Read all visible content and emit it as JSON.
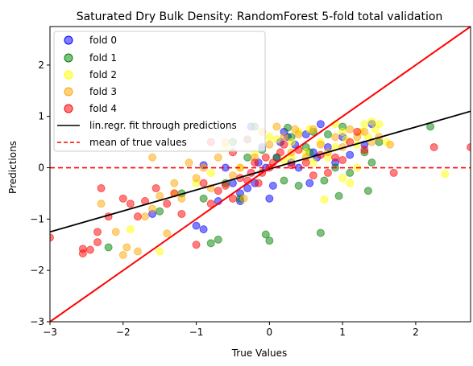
{
  "chart_data": {
    "type": "scatter",
    "title": "Saturated Dry Bulk Density: RandomForest 5-fold total validation",
    "xlabel": "True Values",
    "ylabel": "Predictions",
    "xlim": [
      -3.0,
      2.75
    ],
    "ylim": [
      -3.0,
      2.75
    ],
    "xticks": [
      -3,
      -2,
      -1,
      0,
      1,
      2
    ],
    "yticks": [
      -3,
      -2,
      -1,
      0,
      1,
      2
    ],
    "tick_labels": [
      "−3",
      "−2",
      "−1",
      "0",
      "1",
      "2"
    ],
    "legend_position": "upper-left",
    "series": [
      {
        "name": "fold 0",
        "color": "#0000ff",
        "points": [
          [
            -1.6,
            -0.9
          ],
          [
            -1.0,
            -1.13
          ],
          [
            -0.9,
            -1.2
          ],
          [
            -0.7,
            -0.65
          ],
          [
            -0.6,
            0.0
          ],
          [
            -0.5,
            -0.3
          ],
          [
            -0.4,
            -0.5
          ],
          [
            -0.3,
            0.55
          ],
          [
            -0.25,
            0.8
          ],
          [
            -0.2,
            -0.3
          ],
          [
            -0.15,
            0.1
          ],
          [
            -0.1,
            0.4
          ],
          [
            -0.05,
            0.0
          ],
          [
            0.0,
            -0.6
          ],
          [
            0.05,
            -0.35
          ],
          [
            0.1,
            0.2
          ],
          [
            0.15,
            0.5
          ],
          [
            0.2,
            0.7
          ],
          [
            0.3,
            0.1
          ],
          [
            0.35,
            0.45
          ],
          [
            0.4,
            0.0
          ],
          [
            0.5,
            0.65
          ],
          [
            0.55,
            -0.3
          ],
          [
            0.6,
            0.3
          ],
          [
            0.65,
            0.2
          ],
          [
            0.7,
            0.85
          ],
          [
            0.8,
            0.4
          ],
          [
            0.9,
            0.1
          ],
          [
            1.0,
            0.6
          ],
          [
            1.1,
            0.25
          ],
          [
            1.3,
            0.45
          ],
          [
            1.4,
            0.85
          ],
          [
            -0.3,
            -0.4
          ],
          [
            -0.4,
            -0.65
          ],
          [
            -0.9,
            0.05
          ],
          [
            0.25,
            0.6
          ]
        ]
      },
      {
        "name": "fold 1",
        "color": "#008000",
        "points": [
          [
            -2.2,
            -1.55
          ],
          [
            -1.5,
            -0.85
          ],
          [
            -1.2,
            -0.5
          ],
          [
            -0.9,
            -0.6
          ],
          [
            -0.8,
            -1.47
          ],
          [
            -0.7,
            -1.4
          ],
          [
            -0.6,
            -0.3
          ],
          [
            -0.5,
            0.5
          ],
          [
            -0.4,
            -0.6
          ],
          [
            -0.3,
            0.2
          ],
          [
            -0.2,
            0.8
          ],
          [
            -0.1,
            0.35
          ],
          [
            -0.05,
            -1.3
          ],
          [
            0.0,
            -1.42
          ],
          [
            0.1,
            0.2
          ],
          [
            0.2,
            -0.25
          ],
          [
            0.3,
            0.6
          ],
          [
            0.4,
            -0.35
          ],
          [
            0.5,
            0.4
          ],
          [
            0.6,
            0.7
          ],
          [
            0.7,
            -1.27
          ],
          [
            0.75,
            -0.25
          ],
          [
            0.8,
            0.65
          ],
          [
            0.9,
            0.0
          ],
          [
            0.95,
            -0.55
          ],
          [
            1.0,
            0.8
          ],
          [
            1.1,
            -0.1
          ],
          [
            1.3,
            0.3
          ],
          [
            1.35,
            -0.45
          ],
          [
            1.4,
            0.1
          ],
          [
            1.5,
            0.5
          ],
          [
            2.2,
            0.8
          ],
          [
            0.25,
            0.78
          ],
          [
            0.55,
            0.3
          ]
        ]
      },
      {
        "name": "fold 2",
        "color": "#ffff00",
        "points": [
          [
            -1.9,
            -1.2
          ],
          [
            -1.5,
            -1.63
          ],
          [
            -1.3,
            -0.5
          ],
          [
            -1.0,
            -0.3
          ],
          [
            -0.8,
            -0.1
          ],
          [
            -0.6,
            0.4
          ],
          [
            -0.4,
            0.0
          ],
          [
            -0.2,
            0.3
          ],
          [
            0.0,
            0.6
          ],
          [
            0.1,
            0.55
          ],
          [
            0.2,
            0.15
          ],
          [
            0.3,
            0.5
          ],
          [
            0.4,
            0.7
          ],
          [
            0.5,
            0.3
          ],
          [
            0.55,
            0.75
          ],
          [
            0.6,
            0.1
          ],
          [
            0.7,
            0.5
          ],
          [
            0.75,
            -0.62
          ],
          [
            0.8,
            0.2
          ],
          [
            0.9,
            0.4
          ],
          [
            1.0,
            0.7
          ],
          [
            1.05,
            0.55
          ],
          [
            1.1,
            -0.3
          ],
          [
            1.2,
            0.45
          ],
          [
            1.25,
            0.7
          ],
          [
            1.3,
            0.85
          ],
          [
            1.35,
            0.6
          ],
          [
            1.4,
            0.9
          ],
          [
            1.45,
            0.75
          ],
          [
            1.5,
            0.85
          ],
          [
            1.6,
            0.5
          ],
          [
            2.4,
            -0.12
          ],
          [
            1.0,
            -0.2
          ],
          [
            1.2,
            0.0
          ],
          [
            0.9,
            0.85
          ],
          [
            0.3,
            0.2
          ]
        ]
      },
      {
        "name": "fold 3",
        "color": "#ffa500",
        "points": [
          [
            -2.1,
            -1.25
          ],
          [
            -2.0,
            -1.7
          ],
          [
            -1.8,
            -1.63
          ],
          [
            -1.7,
            -0.95
          ],
          [
            -1.6,
            -0.8
          ],
          [
            -1.5,
            -0.55
          ],
          [
            -1.4,
            -1.28
          ],
          [
            -1.3,
            -0.3
          ],
          [
            -1.2,
            -0.6
          ],
          [
            -1.1,
            0.1
          ],
          [
            -1.0,
            -0.2
          ],
          [
            -0.9,
            0.0
          ],
          [
            -0.8,
            -0.4
          ],
          [
            -0.7,
            0.2
          ],
          [
            -0.6,
            0.5
          ],
          [
            -0.5,
            -0.15
          ],
          [
            -0.4,
            0.0
          ],
          [
            -0.3,
            0.55
          ],
          [
            -0.2,
            0.2
          ],
          [
            -0.1,
            0.7
          ],
          [
            0.0,
            0.45
          ],
          [
            0.1,
            0.8
          ],
          [
            0.2,
            0.6
          ],
          [
            0.3,
            0.3
          ],
          [
            0.35,
            0.75
          ],
          [
            0.4,
            0.65
          ],
          [
            0.5,
            0.2
          ],
          [
            0.6,
            0.75
          ],
          [
            0.7,
            0.45
          ],
          [
            0.8,
            0.3
          ],
          [
            0.9,
            0.6
          ],
          [
            1.0,
            0.4
          ],
          [
            1.1,
            0.75
          ],
          [
            1.2,
            0.6
          ],
          [
            1.3,
            0.7
          ],
          [
            1.4,
            0.5
          ],
          [
            1.5,
            0.6
          ],
          [
            1.65,
            0.45
          ],
          [
            -2.3,
            -0.7
          ],
          [
            -1.95,
            -1.55
          ],
          [
            -1.6,
            0.2
          ],
          [
            -0.35,
            -0.6
          ]
        ]
      },
      {
        "name": "fold 4",
        "color": "#ff0000",
        "points": [
          [
            -3.0,
            -1.36
          ],
          [
            -2.55,
            -1.58
          ],
          [
            -2.55,
            -1.67
          ],
          [
            -2.45,
            -1.6
          ],
          [
            -2.35,
            -1.25
          ],
          [
            -2.35,
            -1.45
          ],
          [
            -2.3,
            -0.4
          ],
          [
            -2.2,
            -0.95
          ],
          [
            -2.0,
            -0.6
          ],
          [
            -1.9,
            -0.7
          ],
          [
            -1.8,
            -0.95
          ],
          [
            -1.7,
            -0.65
          ],
          [
            -1.55,
            -0.4
          ],
          [
            -1.4,
            -0.7
          ],
          [
            -1.3,
            -0.5
          ],
          [
            -1.2,
            -0.9
          ],
          [
            -1.0,
            -1.5
          ],
          [
            -0.9,
            -0.3
          ],
          [
            -0.8,
            -0.7
          ],
          [
            -0.7,
            -0.45
          ],
          [
            -0.6,
            -0.35
          ],
          [
            -0.5,
            -0.6
          ],
          [
            -0.4,
            -0.2
          ],
          [
            -0.3,
            -0.25
          ],
          [
            -0.25,
            -0.1
          ],
          [
            -0.2,
            0.1
          ],
          [
            -0.15,
            -0.3
          ],
          [
            -0.1,
            -0.1
          ],
          [
            -0.05,
            0.2
          ],
          [
            0.0,
            0.0
          ],
          [
            0.05,
            0.1
          ],
          [
            0.15,
            0.3
          ],
          [
            0.2,
            0.45
          ],
          [
            0.3,
            0.05
          ],
          [
            0.4,
            0.35
          ],
          [
            0.5,
            0.1
          ],
          [
            0.6,
            -0.15
          ],
          [
            0.7,
            0.25
          ],
          [
            0.8,
            -0.1
          ],
          [
            0.9,
            0.2
          ],
          [
            1.0,
            0.15
          ],
          [
            1.1,
            0.5
          ],
          [
            1.2,
            0.7
          ],
          [
            1.3,
            0.35
          ],
          [
            1.7,
            -0.1
          ],
          [
            2.25,
            0.4
          ],
          [
            2.75,
            0.4
          ],
          [
            -0.8,
            0.5
          ],
          [
            -0.5,
            0.3
          ]
        ]
      }
    ],
    "identity_line": {
      "color": "#ff0000",
      "x": [
        -3.0,
        2.75
      ],
      "y": [
        -3.0,
        2.75
      ]
    },
    "fit_line": {
      "name": "lin.regr. fit through predictions",
      "color": "#000000",
      "x": [
        -3.0,
        2.75
      ],
      "y": [
        -1.25,
        1.1
      ]
    },
    "mean_line": {
      "name": "mean of true values",
      "color": "#ff0000",
      "y": 0.0
    }
  }
}
